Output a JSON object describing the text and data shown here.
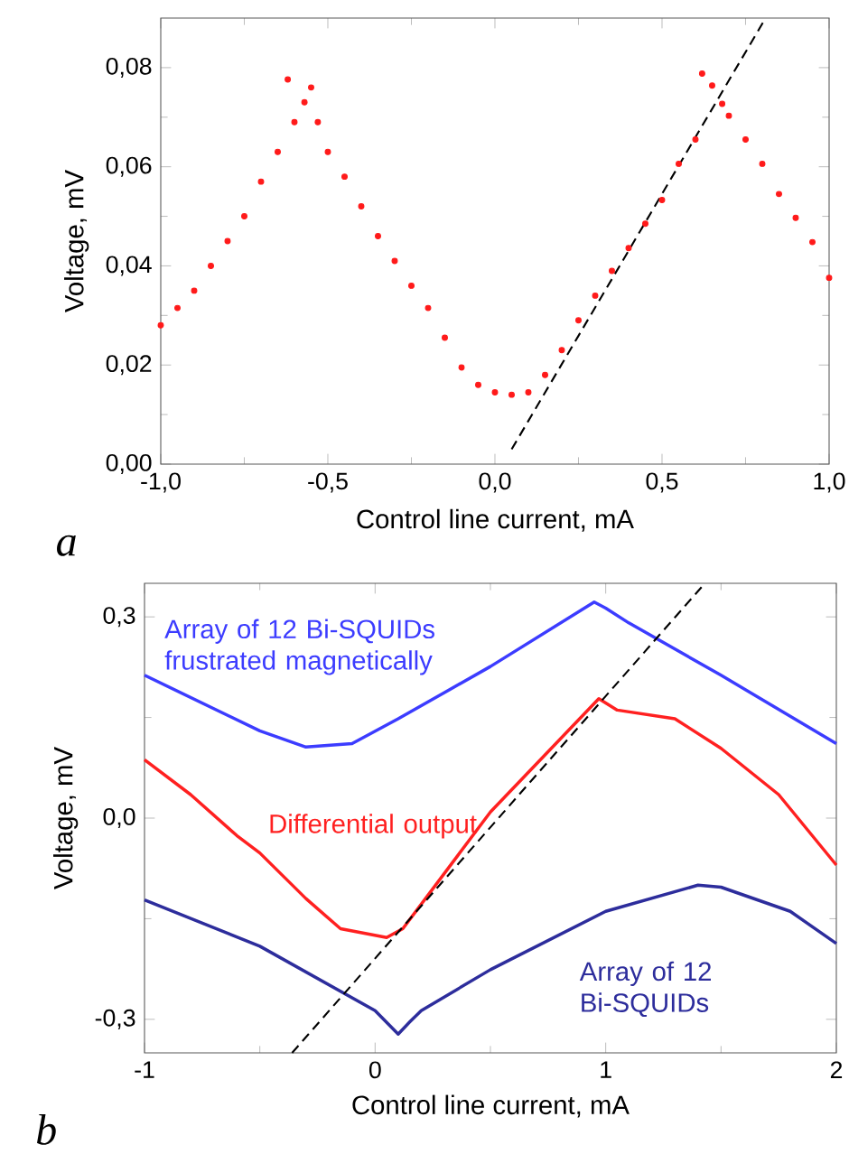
{
  "chart_data": [
    {
      "type": "scatter",
      "xlabel": "Control line current, mA",
      "ylabel": "Voltage, mV",
      "annotations": [
        "a"
      ],
      "xlim": [
        -1,
        1
      ],
      "ylim": [
        0,
        0.09
      ],
      "xticks": [
        {
          "value": -1,
          "label": "-1,0"
        },
        {
          "value": -0.5,
          "label": "-0,5"
        },
        {
          "value": 0,
          "label": "0,0"
        },
        {
          "value": 0.5,
          "label": "0,5"
        },
        {
          "value": 1,
          "label": "1,0"
        }
      ],
      "yticks": [
        {
          "value": 0,
          "label": "0,00"
        },
        {
          "value": 0.02,
          "label": "0,02"
        },
        {
          "value": 0.04,
          "label": "0,04"
        },
        {
          "value": 0.06,
          "label": "0,06"
        },
        {
          "value": 0.08,
          "label": "0,08"
        }
      ],
      "legend": false,
      "grid": false,
      "series": [
        {
          "type": "scatter",
          "marker": "circle",
          "color": "#ff1a1a",
          "x": [
            -1.0,
            -0.95,
            -0.9,
            -0.85,
            -0.8,
            -0.75,
            -0.7,
            -0.65,
            -0.62,
            -0.6,
            -0.57,
            -0.55,
            -0.53,
            -0.5,
            -0.45,
            -0.4,
            -0.35,
            -0.3,
            -0.25,
            -0.2,
            -0.15,
            -0.1,
            -0.05,
            0,
            0.05,
            0.1,
            0.15,
            0.2,
            0.25,
            0.3,
            0.35,
            0.4,
            0.45,
            0.5,
            0.55,
            0.6,
            0.62,
            0.65,
            0.68,
            0.7,
            0.75,
            0.8,
            0.85,
            0.9,
            0.95,
            1.0
          ],
          "values": [
            0.028,
            0.0315,
            0.035,
            0.04,
            0.045,
            0.05,
            0.057,
            0.063,
            0.0776,
            0.069,
            0.073,
            0.076,
            0.069,
            0.063,
            0.058,
            0.052,
            0.046,
            0.041,
            0.036,
            0.0315,
            0.0255,
            0.0195,
            0.016,
            0.0145,
            0.014,
            0.0145,
            0.018,
            0.023,
            0.029,
            0.034,
            0.039,
            0.0436,
            0.0485,
            0.0533,
            0.0606,
            0.0655,
            0.0788,
            0.0764,
            0.0727,
            0.0703,
            0.0655,
            0.0606,
            0.0545,
            0.0497,
            0.0448,
            0.0376
          ]
        },
        {
          "type": "line",
          "line_style": "dashed",
          "marker": "none",
          "color": "#000000",
          "x": [
            0.05,
            0.81
          ],
          "values": [
            0.003,
            0.09
          ]
        }
      ]
    },
    {
      "type": "line",
      "xlabel": "Control line current, mA",
      "ylabel": "Voltage, mV",
      "annotations": [
        "b"
      ],
      "xlim": [
        -1,
        2
      ],
      "ylim": [
        -0.35,
        0.35
      ],
      "xticks": [
        -1,
        0,
        1,
        2
      ],
      "yticks": [
        {
          "value": -0.3,
          "label": "-0,3"
        },
        {
          "value": 0,
          "label": "0,0"
        },
        {
          "value": 0.3,
          "label": "0,3"
        }
      ],
      "legend": false,
      "grid": false,
      "series": [
        {
          "name": "Array of 12 Bi-SQUIDs frustrated magnetically",
          "color": "#3c3cff",
          "line_style": "solid",
          "x": [
            -1,
            -0.5,
            -0.3,
            -0.1,
            0.1,
            0.5,
            0.95,
            1.0,
            1.1,
            1.5,
            2.0
          ],
          "values": [
            0.213,
            0.13,
            0.106,
            0.111,
            0.148,
            0.226,
            0.322,
            0.313,
            0.291,
            0.213,
            0.111
          ]
        },
        {
          "name": "Differential output",
          "color": "#ff2020",
          "line_style": "solid",
          "x": [
            -1,
            -0.8,
            -0.6,
            -0.5,
            -0.3,
            -0.15,
            0.05,
            0.12,
            0.5,
            0.97,
            1.05,
            1.3,
            1.5,
            1.75,
            2.0
          ],
          "values": [
            0.087,
            0.035,
            -0.026,
            -0.052,
            -0.12,
            -0.165,
            -0.178,
            -0.165,
            0.009,
            0.178,
            0.161,
            0.148,
            0.104,
            0.035,
            -0.07
          ]
        },
        {
          "name": "Array of 12 Bi-SQUIDs",
          "color": "#2d2d9c",
          "line_style": "solid",
          "x": [
            -1,
            -0.5,
            0,
            0.1,
            0.15,
            0.2,
            0.5,
            1,
            1.4,
            1.5,
            1.8,
            2
          ],
          "values": [
            -0.122,
            -0.191,
            -0.287,
            -0.322,
            -0.304,
            -0.287,
            -0.226,
            -0.139,
            -0.1,
            -0.103,
            -0.139,
            -0.187
          ]
        },
        {
          "color": "#000000",
          "line_style": "dashed",
          "x": [
            -0.36,
            1.43
          ],
          "values": [
            -0.35,
            0.35
          ]
        }
      ]
    }
  ]
}
